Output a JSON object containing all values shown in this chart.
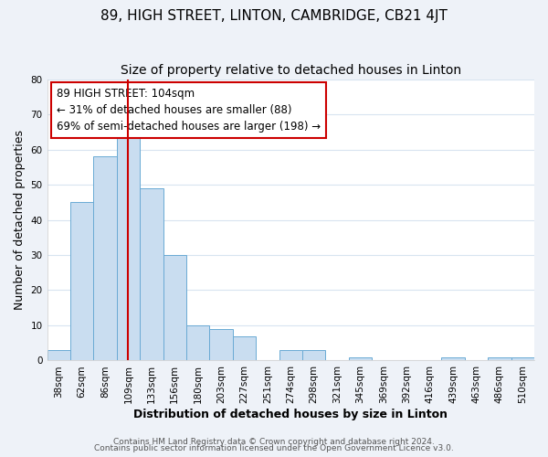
{
  "title": "89, HIGH STREET, LINTON, CAMBRIDGE, CB21 4JT",
  "subtitle": "Size of property relative to detached houses in Linton",
  "xlabel": "Distribution of detached houses by size in Linton",
  "ylabel": "Number of detached properties",
  "bar_labels": [
    "38sqm",
    "62sqm",
    "86sqm",
    "109sqm",
    "133sqm",
    "156sqm",
    "180sqm",
    "203sqm",
    "227sqm",
    "251sqm",
    "274sqm",
    "298sqm",
    "321sqm",
    "345sqm",
    "369sqm",
    "392sqm",
    "416sqm",
    "439sqm",
    "463sqm",
    "486sqm",
    "510sqm"
  ],
  "bar_values": [
    3,
    45,
    58,
    66,
    49,
    30,
    10,
    9,
    7,
    0,
    3,
    3,
    0,
    1,
    0,
    0,
    0,
    1,
    0,
    1,
    1
  ],
  "bar_color": "#c9ddf0",
  "bar_edge_color": "#6aaad4",
  "ylim": [
    0,
    80
  ],
  "yticks": [
    0,
    10,
    20,
    30,
    40,
    50,
    60,
    70,
    80
  ],
  "vline_x": 3.0,
  "vline_color": "#cc0000",
  "annotation_title": "89 HIGH STREET: 104sqm",
  "annotation_line1": "← 31% of detached houses are smaller (88)",
  "annotation_line2": "69% of semi-detached houses are larger (198) →",
  "annotation_box_color": "#cc0000",
  "footer1": "Contains HM Land Registry data © Crown copyright and database right 2024.",
  "footer2": "Contains public sector information licensed under the Open Government Licence v3.0.",
  "plot_bg_color": "#ffffff",
  "fig_bg_color": "#eef2f8",
  "grid_color": "#d8e4f0",
  "title_fontsize": 11,
  "subtitle_fontsize": 10,
  "axis_label_fontsize": 9,
  "tick_fontsize": 7.5,
  "annotation_fontsize": 8.5,
  "footer_fontsize": 6.5
}
